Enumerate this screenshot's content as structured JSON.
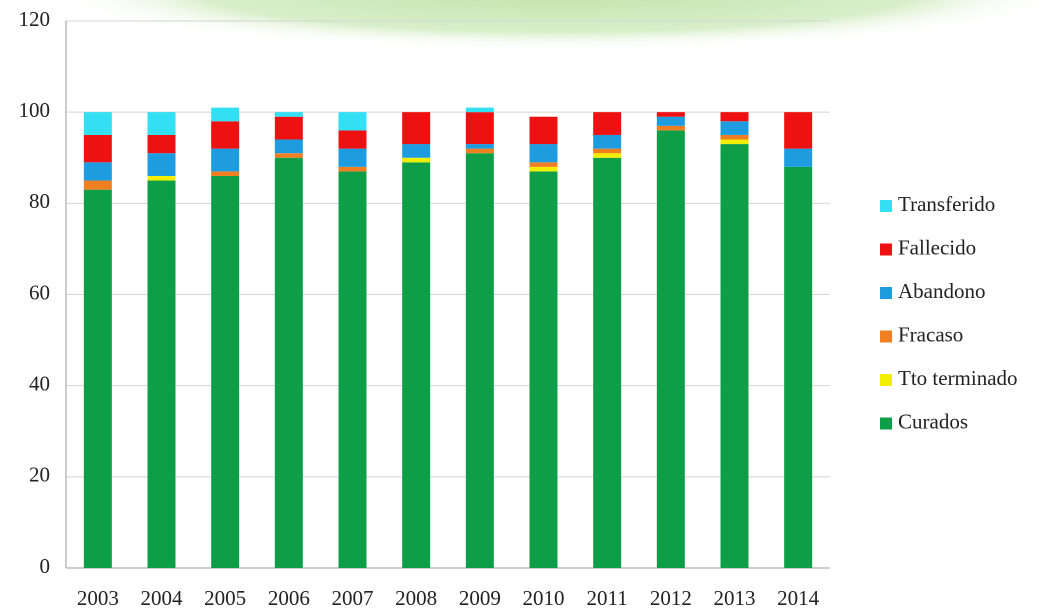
{
  "chart_data": {
    "type": "stacked_bar",
    "categories": [
      "2003",
      "2004",
      "2005",
      "2006",
      "2007",
      "2008",
      "2009",
      "2010",
      "2011",
      "2012",
      "2013",
      "2014"
    ],
    "series": [
      {
        "name": "Curados",
        "color": "#0f9e48",
        "values": [
          83,
          85,
          86,
          90,
          87,
          89,
          91,
          87,
          90,
          96,
          93,
          88
        ]
      },
      {
        "name": "Tto terminado",
        "color": "#f2ee00",
        "values": [
          0,
          1,
          0,
          0,
          0,
          1,
          0,
          1,
          1,
          0,
          1,
          0
        ]
      },
      {
        "name": "Fracaso",
        "color": "#f07f22",
        "values": [
          2,
          0,
          1,
          1,
          1,
          0,
          1,
          1,
          1,
          1,
          1,
          0
        ]
      },
      {
        "name": "Abandono",
        "color": "#1d9de0",
        "values": [
          4,
          5,
          5,
          3,
          4,
          3,
          1,
          4,
          3,
          2,
          3,
          4
        ]
      },
      {
        "name": "Fallecido",
        "color": "#ee1111",
        "values": [
          6,
          4,
          6,
          5,
          4,
          7,
          7,
          6,
          5,
          1,
          2,
          8
        ]
      },
      {
        "name": "Transferido",
        "color": "#33dff2",
        "values": [
          5,
          5,
          3,
          1,
          4,
          0,
          1,
          0,
          0,
          0,
          0,
          0
        ]
      }
    ],
    "ylim": [
      0,
      120
    ],
    "yticks": [
      0,
      20,
      40,
      60,
      80,
      100,
      120
    ],
    "grid": true,
    "legend": "right"
  }
}
